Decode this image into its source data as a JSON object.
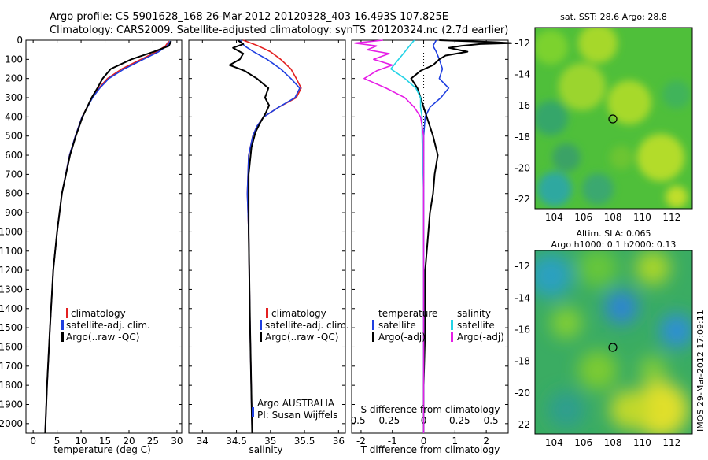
{
  "title": {
    "line1": "Argo profile: CS 5901628_168 26-Mar-2012 20120328_403 16.493S 107.825E",
    "line2": "Climatology: CARS2009. Satellite-adjusted climatology: synTS_20120324.nc (2.7d earlier)"
  },
  "colors": {
    "climatology": "#e32020",
    "satellite": "#1f3fe0",
    "argo": "#000000",
    "salinity_sat": "#22d3e6",
    "salinity_argo": "#e61ee6"
  },
  "side_text": "IMOS 29-Mar-2012 17:09:11",
  "map_top": {
    "title": "sat. SST: 28.6 Argo: 28.8",
    "xticks": [
      "104",
      "106",
      "108",
      "110",
      "112"
    ],
    "yticks": [
      "-12",
      "-14",
      "-16",
      "-18",
      "-20",
      "-22"
    ],
    "marker": {
      "lon": 107.825,
      "lat": -16.493
    }
  },
  "map_bottom": {
    "title1": "Altim. SLA: 0.065",
    "title2": "Argo h1000: 0.1 h2000: 0.13",
    "xticks": [
      "104",
      "106",
      "108",
      "110",
      "112"
    ],
    "yticks": [
      "-12",
      "-14",
      "-16",
      "-18",
      "-20",
      "-22"
    ],
    "marker": {
      "lon": 107.825,
      "lat": -16.493
    }
  },
  "chart_data": [
    {
      "type": "line",
      "xlabel": "temperature (deg C)",
      "ylim": [
        2050,
        0
      ],
      "xlim": [
        -1.5,
        31
      ],
      "yticks": [
        0,
        100,
        200,
        300,
        400,
        500,
        600,
        700,
        800,
        900,
        1000,
        1100,
        1200,
        1300,
        1400,
        1500,
        1600,
        1700,
        1800,
        1900,
        2000
      ],
      "xticks": [
        0,
        5,
        10,
        15,
        20,
        25,
        30
      ],
      "legend": [
        "climatology",
        "satellite-adj. clim.",
        "Argo(..raw -QC)"
      ],
      "series": [
        {
          "name": "climatology",
          "depth": [
            5,
            30,
            60,
            100,
            150,
            200,
            250,
            300,
            400,
            500,
            600,
            800,
            1000,
            1200,
            1500,
            1800,
            2050
          ],
          "values": [
            28.3,
            27.6,
            25.8,
            22.5,
            18.5,
            15.5,
            13.7,
            12.3,
            10.2,
            8.8,
            7.6,
            6.0,
            5.0,
            4.2,
            3.5,
            2.9,
            2.5
          ]
        },
        {
          "name": "satellite-adj. clim.",
          "depth": [
            5,
            30,
            60,
            100,
            150,
            200,
            250,
            300,
            400,
            500,
            600,
            800,
            1000,
            1200,
            1500,
            1800,
            2050
          ],
          "values": [
            28.6,
            27.9,
            26.2,
            23.0,
            19.0,
            15.8,
            13.9,
            12.4,
            10.2,
            8.8,
            7.6,
            6.0,
            5.0,
            4.2,
            3.5,
            2.9,
            2.5
          ]
        },
        {
          "name": "Argo(..raw -QC)",
          "depth": [
            5,
            30,
            60,
            100,
            150,
            200,
            250,
            300,
            400,
            500,
            600,
            800,
            1000,
            1200,
            1500,
            1800,
            2050
          ],
          "values": [
            28.8,
            28.3,
            25.2,
            20.5,
            16.2,
            14.5,
            13.4,
            12.2,
            10.3,
            8.9,
            7.7,
            6.0,
            5.0,
            4.2,
            3.5,
            2.9,
            2.5
          ]
        }
      ]
    },
    {
      "type": "line",
      "xlabel": "salinity",
      "ylim": [
        2050,
        0
      ],
      "xlim": [
        33.8,
        36.1
      ],
      "xticks": [
        34,
        34.5,
        35,
        35.5,
        36
      ],
      "legend": [
        "climatology",
        "satellite-adj. clim.",
        "Argo(..raw -QC)"
      ],
      "annotation": [
        "Argo AUSTRALIA",
        "PI: Susan Wijffels"
      ],
      "series": [
        {
          "name": "climatology",
          "depth": [
            0,
            30,
            60,
            100,
            150,
            200,
            250,
            300,
            350,
            400,
            450,
            500,
            600,
            800,
            1000,
            1500,
            2050
          ],
          "values": [
            34.6,
            34.82,
            35.0,
            35.15,
            35.3,
            35.38,
            35.45,
            35.38,
            35.12,
            34.9,
            34.8,
            34.74,
            34.68,
            34.66,
            34.68,
            34.7,
            34.73
          ]
        },
        {
          "name": "satellite-adj. clim.",
          "depth": [
            0,
            30,
            60,
            100,
            150,
            200,
            250,
            300,
            350,
            400,
            450,
            500,
            600,
            800,
            1000,
            1500,
            2050
          ],
          "values": [
            34.55,
            34.62,
            34.75,
            34.95,
            35.15,
            35.3,
            35.43,
            35.36,
            35.12,
            34.9,
            34.8,
            34.74,
            34.68,
            34.66,
            34.68,
            34.7,
            34.73
          ]
        },
        {
          "name": "Argo(..raw -QC)",
          "depth": [
            0,
            20,
            40,
            70,
            100,
            130,
            160,
            200,
            250,
            300,
            340,
            380,
            430,
            480,
            560,
            700,
            1000,
            1500,
            2050
          ],
          "values": [
            34.52,
            34.6,
            34.45,
            34.6,
            34.55,
            34.4,
            34.62,
            34.8,
            34.97,
            34.92,
            34.98,
            34.93,
            34.85,
            34.78,
            34.72,
            34.68,
            34.68,
            34.7,
            34.73
          ]
        }
      ]
    },
    {
      "type": "line",
      "xlabel": "T difference from climatology",
      "toplabel": "S difference from climatology",
      "ylim": [
        2050,
        0
      ],
      "xlim": [
        -2.3,
        2.7
      ],
      "xticks": [
        -2,
        -1,
        0,
        1,
        2
      ],
      "xticks_top": [
        "-0.5",
        "-0.25",
        "0",
        "0.25",
        "0.5"
      ],
      "legend_left": {
        "head": "temperature",
        "items": [
          "satellite",
          "Argo(-adj)"
        ]
      },
      "legend_right": {
        "head": "salinity",
        "items": [
          "satellite",
          "Argo(-adj)"
        ]
      },
      "series": [
        {
          "name": "temperature satellite",
          "depth": [
            0,
            30,
            60,
            100,
            150,
            200,
            250,
            300,
            350,
            400,
            500,
            700,
            1000,
            1500,
            2050
          ],
          "values": [
            0.4,
            0.3,
            0.4,
            0.5,
            0.6,
            0.5,
            0.8,
            0.55,
            0.2,
            0.05,
            0.0,
            0.0,
            0.0,
            0.0,
            0.0
          ]
        },
        {
          "name": "temperature Argo(-adj)",
          "depth": [
            0,
            10,
            15,
            20,
            30,
            40,
            60,
            80,
            100,
            130,
            160,
            200,
            250,
            300,
            400,
            500,
            600,
            700,
            800,
            900,
            1000,
            1200,
            1500,
            1800,
            2050
          ],
          "values": [
            0.5,
            2.2,
            2.8,
            1.8,
            1.2,
            0.8,
            1.4,
            0.7,
            0.5,
            0.3,
            -0.1,
            -0.4,
            -0.2,
            -0.1,
            0.1,
            0.3,
            0.45,
            0.35,
            0.3,
            0.2,
            0.15,
            0.05,
            0.05,
            0.0,
            0.0
          ]
        },
        {
          "name": "salinity satellite",
          "depth": [
            0,
            30,
            60,
            100,
            150,
            200,
            250,
            300,
            350,
            400,
            500,
            800,
            1200,
            1600,
            2050
          ],
          "values": [
            -0.3,
            -0.45,
            -0.6,
            -0.8,
            -1.05,
            -0.6,
            -0.25,
            -0.1,
            -0.1,
            -0.05,
            -0.05,
            0.0,
            0.0,
            0.0,
            0.0
          ]
        },
        {
          "name": "salinity Argo(-adj)",
          "depth": [
            0,
            15,
            30,
            50,
            70,
            100,
            130,
            160,
            200,
            250,
            300,
            350,
            400,
            500,
            800,
            1200,
            1600,
            2050
          ],
          "values": [
            -1.3,
            -2.2,
            -1.5,
            -1.8,
            -1.1,
            -1.6,
            -1.0,
            -1.5,
            -1.9,
            -1.2,
            -0.6,
            -0.3,
            -0.1,
            0.0,
            0.0,
            0.0,
            0.0,
            0.0
          ]
        }
      ]
    }
  ]
}
